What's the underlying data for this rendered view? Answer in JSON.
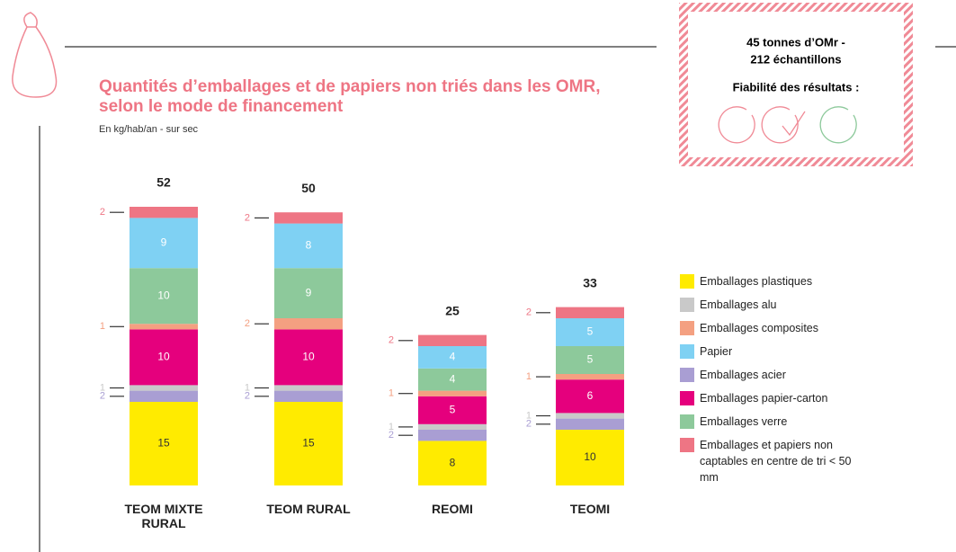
{
  "header": {
    "box_line1": "45 tonnes d’OMr -",
    "box_line2": "212 échantillons",
    "box_line3": "Fiabilité des résultats :"
  },
  "chart_data": {
    "type": "stacked-bar",
    "title": "Quantités d’emballages et de papiers non triés dans les OMR,",
    "title_line2": "selon le mode de financement",
    "subtitle": "En kg/hab/an - sur sec",
    "categories": [
      "TEOM MIXTE RURAL",
      "TEOM RURAL",
      "REOMI",
      "TEOMI"
    ],
    "totals": [
      52,
      50,
      25,
      33
    ],
    "series": [
      {
        "name": "Emballages plastiques",
        "color": "#ffeb00",
        "values": [
          15,
          15,
          8,
          10
        ]
      },
      {
        "name": "Emballages alu",
        "color": "#c9c9c9",
        "values": [
          1,
          1,
          1,
          1
        ]
      },
      {
        "name": "Emballages composites",
        "color": "#f4a081",
        "values": [
          1,
          2,
          1,
          1
        ]
      },
      {
        "name": "Papier",
        "color": "#7fd1f3",
        "values": [
          9,
          8,
          4,
          5
        ]
      },
      {
        "name": "Emballages acier",
        "color": "#a99ed3",
        "values": [
          2,
          2,
          2,
          2
        ]
      },
      {
        "name": "Emballages papier-carton",
        "color": "#e5007d",
        "values": [
          10,
          10,
          5,
          6
        ]
      },
      {
        "name": "Emballages verre",
        "color": "#8dc99b",
        "values": [
          10,
          9,
          4,
          5
        ]
      },
      {
        "name": "Emballages et papiers non captables en centre de tri < 50 mm",
        "color": "#ee7584",
        "values": [
          2,
          2,
          2,
          2
        ]
      }
    ]
  }
}
